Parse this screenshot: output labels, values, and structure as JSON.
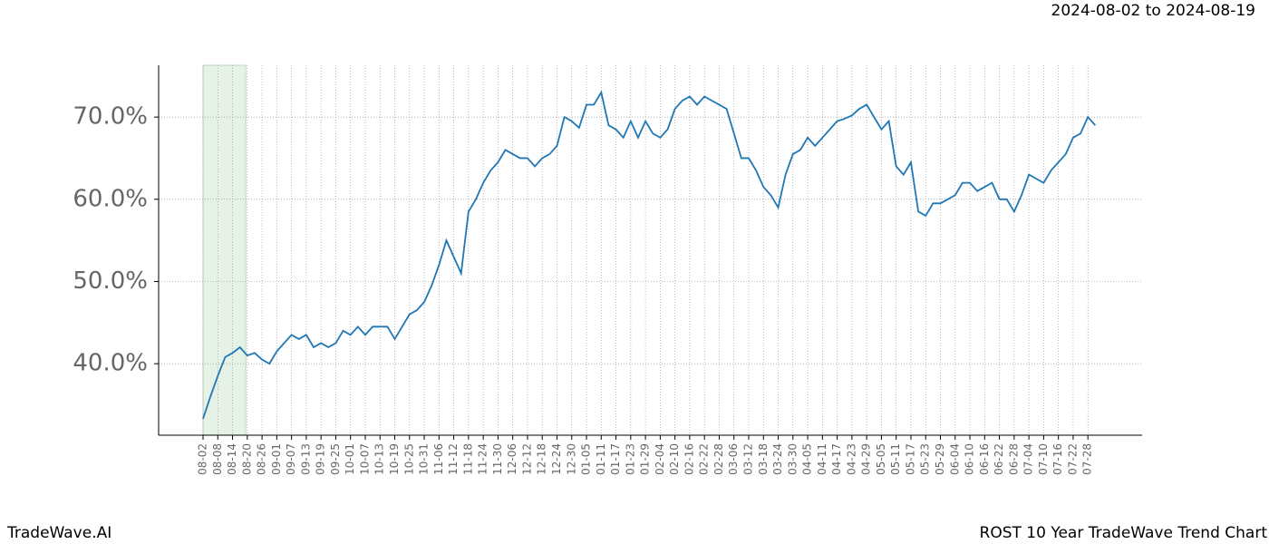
{
  "chart_data": {
    "type": "line",
    "title": "2024-08-02 to 2024-08-19",
    "brand": "TradeWave.AI",
    "subtitle": "ROST 10 Year TradeWave Trend Chart",
    "color": "#1f77b4",
    "categories": [
      "08-02",
      null,
      "08-08",
      null,
      "08-14",
      null,
      "08-20",
      null,
      "08-26",
      null,
      "09-01",
      null,
      "09-07",
      null,
      "09-13",
      null,
      "09-19",
      null,
      "09-25",
      null,
      "10-01",
      null,
      "10-07",
      null,
      "10-13",
      null,
      "10-19",
      null,
      "10-25",
      null,
      "10-31",
      null,
      "11-06",
      null,
      "11-12",
      null,
      "11-18",
      null,
      "11-24",
      null,
      "11-30",
      null,
      "12-06",
      null,
      "12-12",
      null,
      "12-18",
      null,
      "12-24",
      null,
      "12-30",
      null,
      "01-05",
      null,
      "01-11",
      null,
      "01-17",
      null,
      "01-23",
      null,
      "01-29",
      null,
      "02-04",
      null,
      "02-10",
      null,
      "02-16",
      null,
      "02-22",
      null,
      "02-28",
      null,
      "03-06",
      null,
      "03-12",
      null,
      "03-18",
      null,
      "03-24",
      null,
      "03-30",
      null,
      "04-05",
      null,
      "04-11",
      null,
      "04-17",
      null,
      "04-23",
      null,
      "04-29",
      null,
      "05-05",
      null,
      "05-11",
      null,
      "05-17",
      null,
      "05-23",
      null,
      "05-29",
      null,
      "06-04",
      null,
      "06-10",
      null,
      "06-16",
      null,
      "06-22",
      null,
      "06-28",
      null,
      "07-04",
      null,
      "07-10",
      null,
      "07-16",
      null,
      "07-22",
      null,
      "07-28",
      null
    ],
    "values": [
      33.3,
      36,
      38.5,
      40.8,
      41.3,
      42,
      41,
      41.3,
      40.5,
      40,
      41.5,
      42.5,
      43.5,
      43,
      43.5,
      42,
      42.5,
      42,
      42.5,
      44,
      43.5,
      44.5,
      43.5,
      44.5,
      44.5,
      44.5,
      43,
      44.5,
      46,
      46.5,
      47.5,
      49.5,
      52,
      55,
      53,
      51,
      58.5,
      60,
      62,
      63.5,
      64.5,
      66,
      65.5,
      65,
      65,
      64,
      65,
      65.5,
      66.5,
      70,
      69.5,
      68.7,
      71.5,
      71.5,
      73,
      69,
      68.5,
      67.5,
      69.5,
      67.5,
      69.5,
      68,
      67.5,
      68.5,
      71,
      72,
      72.5,
      71.5,
      72.5,
      72,
      71.5,
      71,
      68,
      65,
      65,
      63.5,
      61.5,
      60.5,
      59,
      63,
      65.5,
      66,
      67.5,
      66.5,
      67.5,
      68.5,
      69.5,
      69.8,
      70.2,
      71,
      71.5,
      70,
      68.5,
      69.5,
      64,
      63,
      64.5,
      58.5,
      58,
      59.5,
      59.5,
      60,
      60.5,
      62,
      62,
      61,
      61.5,
      62,
      60,
      60,
      58.5,
      60.5,
      63,
      62.5,
      62,
      63.5,
      64.5,
      65.5,
      67.5,
      68,
      70,
      69
    ],
    "ylim": [
      31.3,
      76.3
    ],
    "yticks": [
      {
        "value": 40,
        "label": "40.0%"
      },
      {
        "value": 50,
        "label": "50.0%"
      },
      {
        "value": 60,
        "label": "60.0%"
      },
      {
        "value": 70,
        "label": "70.0%"
      }
    ],
    "grid": true
  }
}
